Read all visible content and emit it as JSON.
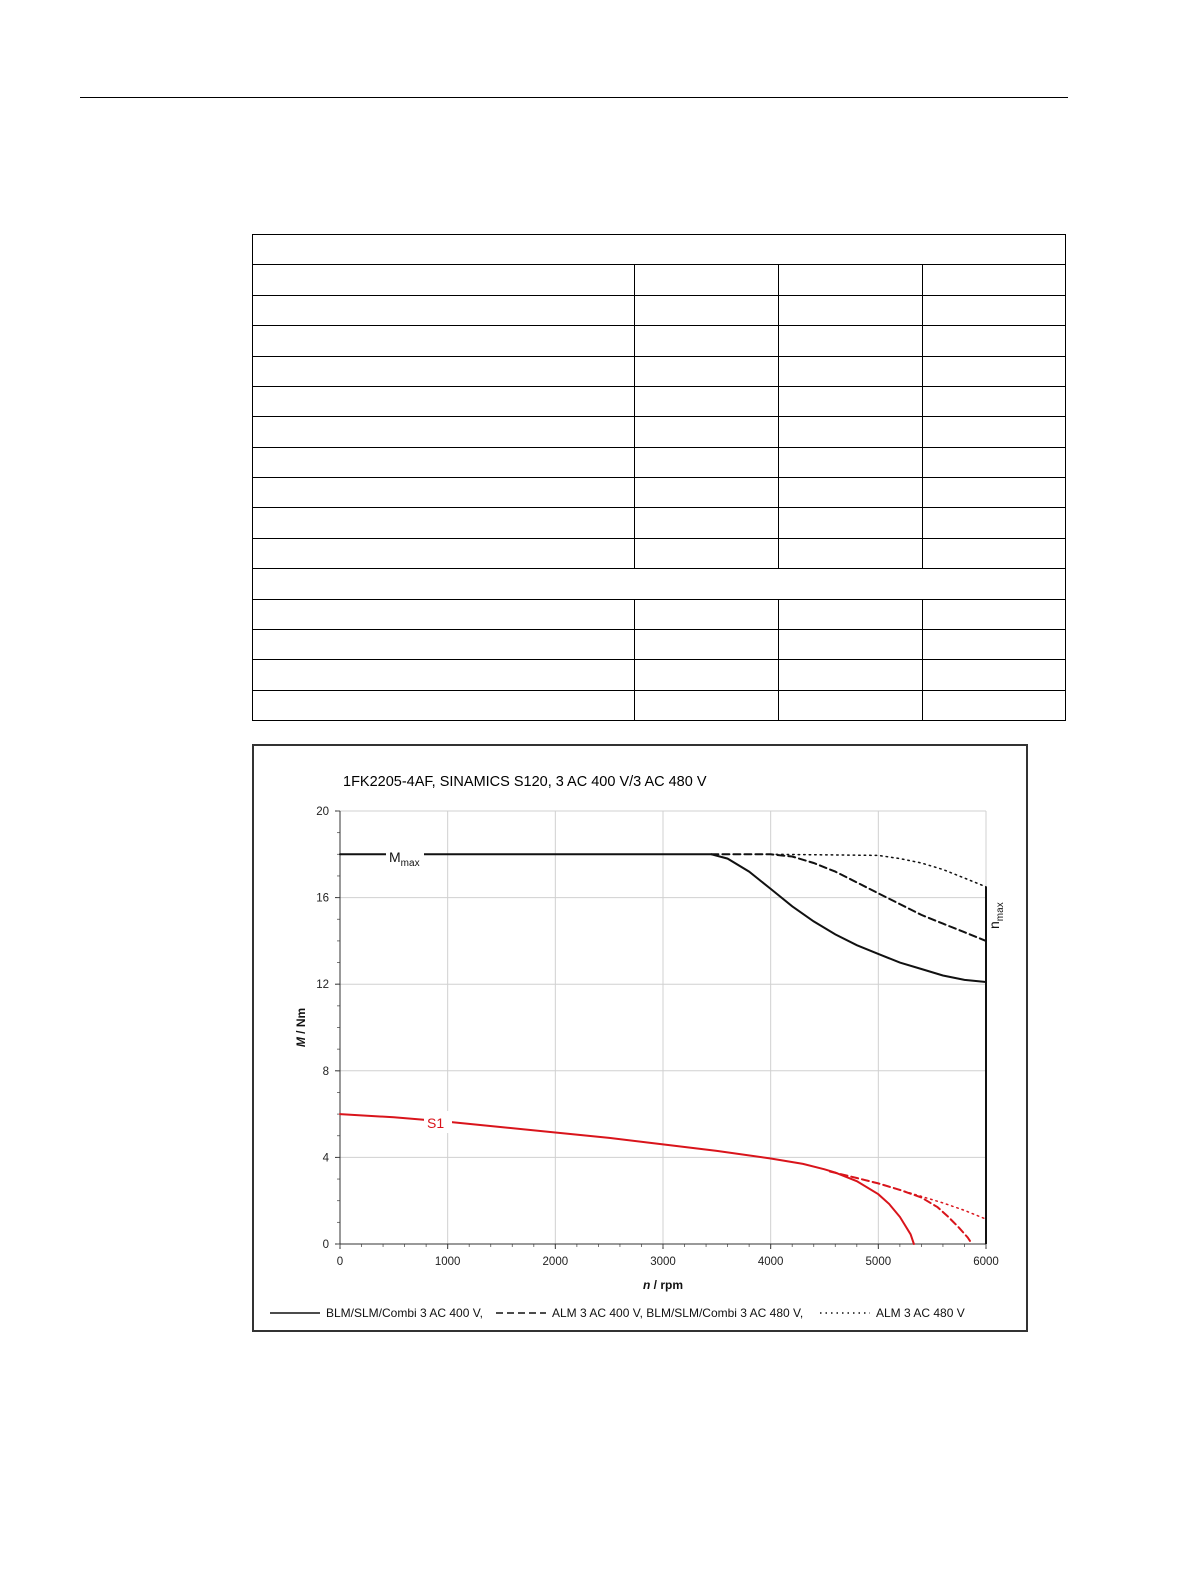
{
  "table": {
    "rows": [
      {
        "type": "full"
      },
      {
        "type": "cols"
      },
      {
        "type": "cols"
      },
      {
        "type": "cols"
      },
      {
        "type": "cols"
      },
      {
        "type": "cols"
      },
      {
        "type": "cols"
      },
      {
        "type": "cols"
      },
      {
        "type": "cols"
      },
      {
        "type": "cols"
      },
      {
        "type": "cols"
      },
      {
        "type": "full"
      },
      {
        "type": "cols"
      },
      {
        "type": "cols"
      },
      {
        "type": "cols"
      },
      {
        "type": "cols"
      }
    ]
  },
  "chart_data": {
    "type": "line",
    "title": "1FK2205-4AF,  SINAMICS S120,  3 AC 400 V/3 AC 480 V",
    "xlabel_italic": "n",
    "xlabel_rest": " / rpm",
    "ylabel_italic": "M",
    "ylabel_rest": " / Nm",
    "xlim": [
      0,
      6000
    ],
    "ylim": [
      0,
      20
    ],
    "xticks": [
      0,
      1000,
      2000,
      3000,
      4000,
      5000,
      6000
    ],
    "yticks": [
      0,
      4,
      8,
      12,
      16,
      20
    ],
    "grid": true,
    "legend_position": "bottom",
    "annotations": {
      "mmax_base": "M",
      "mmax_sub": "max",
      "s1": "S1",
      "nmax_base": "n",
      "nmax_sub": "max"
    },
    "colors": {
      "max_curves": "#111111",
      "s1_curves": "#d9141b",
      "grid": "#d0d0d0"
    },
    "series": [
      {
        "name": "BLM/SLM/Combi 3 AC 400 V,",
        "group": "Mmax",
        "style": "solid",
        "points": [
          [
            0,
            18
          ],
          [
            3450,
            18
          ],
          [
            3600,
            17.8
          ],
          [
            3800,
            17.2
          ],
          [
            4000,
            16.4
          ],
          [
            4200,
            15.6
          ],
          [
            4400,
            14.9
          ],
          [
            4600,
            14.3
          ],
          [
            4800,
            13.8
          ],
          [
            5000,
            13.4
          ],
          [
            5200,
            13.0
          ],
          [
            5400,
            12.7
          ],
          [
            5600,
            12.4
          ],
          [
            5800,
            12.2
          ],
          [
            6000,
            12.1
          ]
        ]
      },
      {
        "name": "ALM 3 AC 400 V, BLM/SLM/Combi 3 AC 480 V,",
        "group": "Mmax",
        "style": "dashed",
        "points": [
          [
            3450,
            18
          ],
          [
            4000,
            18
          ],
          [
            4200,
            17.9
          ],
          [
            4400,
            17.6
          ],
          [
            4600,
            17.2
          ],
          [
            4800,
            16.7
          ],
          [
            5000,
            16.2
          ],
          [
            5200,
            15.7
          ],
          [
            5400,
            15.2
          ],
          [
            5600,
            14.8
          ],
          [
            5800,
            14.4
          ],
          [
            6000,
            14.0
          ]
        ]
      },
      {
        "name": "ALM 3 AC 480 V",
        "group": "Mmax",
        "style": "dotted",
        "points": [
          [
            4000,
            18
          ],
          [
            5000,
            17.95
          ],
          [
            5200,
            17.8
          ],
          [
            5400,
            17.6
          ],
          [
            5600,
            17.3
          ],
          [
            5800,
            16.9
          ],
          [
            6000,
            16.5
          ]
        ]
      },
      {
        "name": "BLM/SLM/Combi 3 AC 400 V,",
        "group": "S1",
        "style": "solid",
        "points": [
          [
            0,
            6.0
          ],
          [
            500,
            5.85
          ],
          [
            1000,
            5.65
          ],
          [
            1500,
            5.4
          ],
          [
            2000,
            5.15
          ],
          [
            2500,
            4.9
          ],
          [
            3000,
            4.6
          ],
          [
            3500,
            4.3
          ],
          [
            4000,
            3.95
          ],
          [
            4300,
            3.7
          ],
          [
            4500,
            3.45
          ],
          [
            4600,
            3.3
          ],
          [
            4800,
            2.9
          ],
          [
            5000,
            2.3
          ],
          [
            5100,
            1.85
          ],
          [
            5200,
            1.25
          ],
          [
            5300,
            0.45
          ],
          [
            5330,
            0.0
          ]
        ]
      },
      {
        "name": "ALM 3 AC 400 V, BLM/SLM/Combi 3 AC 480 V,",
        "group": "S1",
        "style": "dashed",
        "points": [
          [
            4550,
            3.35
          ],
          [
            4800,
            3.05
          ],
          [
            5000,
            2.8
          ],
          [
            5200,
            2.5
          ],
          [
            5400,
            2.15
          ],
          [
            5550,
            1.7
          ],
          [
            5650,
            1.25
          ],
          [
            5750,
            0.75
          ],
          [
            5830,
            0.3
          ],
          [
            5870,
            0.0
          ]
        ]
      },
      {
        "name": "ALM 3 AC 480 V",
        "group": "S1",
        "style": "dotted",
        "points": [
          [
            4550,
            3.35
          ],
          [
            4800,
            3.05
          ],
          [
            5000,
            2.8
          ],
          [
            5200,
            2.5
          ],
          [
            5400,
            2.2
          ],
          [
            5600,
            1.9
          ],
          [
            5800,
            1.55
          ],
          [
            6000,
            1.15
          ]
        ]
      }
    ],
    "legend": [
      {
        "label": "BLM/SLM/Combi 3 AC 400 V,",
        "style": "solid"
      },
      {
        "label": "ALM 3 AC 400 V, BLM/SLM/Combi 3 AC 480 V,",
        "style": "dashed"
      },
      {
        "label": "ALM 3 AC 480 V",
        "style": "dotted"
      }
    ]
  }
}
